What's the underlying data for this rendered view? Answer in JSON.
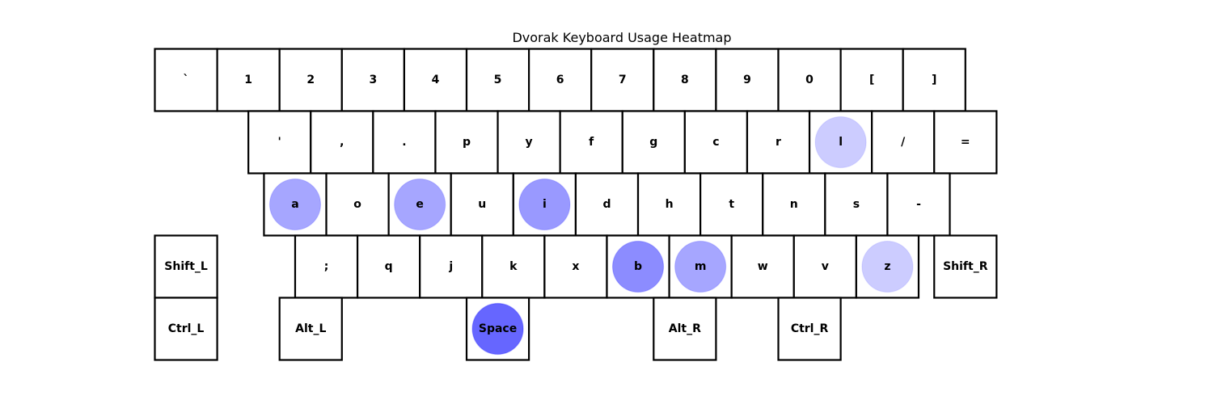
{
  "chart_data": {
    "type": "heatmap",
    "title": "Dvorak Keyboard Usage Heatmap",
    "heat_color": "#0000ff",
    "rows": [
      {
        "offset": 0,
        "keys": [
          "`",
          "1",
          "2",
          "3",
          "4",
          "5",
          "6",
          "7",
          "8",
          "9",
          "0",
          "[",
          "]"
        ]
      },
      {
        "offset": 1.5,
        "keys": [
          "'",
          ",",
          ".",
          "p",
          "y",
          "f",
          "g",
          "c",
          "r",
          "l",
          "/",
          "="
        ]
      },
      {
        "offset": 1.75,
        "keys": [
          "a",
          "o",
          "e",
          "u",
          "i",
          "d",
          "h",
          "t",
          "n",
          "s",
          "-"
        ]
      },
      {
        "offset": 2.25,
        "keys": [
          ";",
          "q",
          "j",
          "k",
          "x",
          "b",
          "m",
          "w",
          "v",
          "z"
        ]
      }
    ],
    "special_keys": [
      {
        "label": "Shift_L",
        "row": 3,
        "col": 0
      },
      {
        "label": "Shift_R",
        "row": 3,
        "col": 12.5
      },
      {
        "label": "Ctrl_L",
        "row": 4,
        "col": 0
      },
      {
        "label": "Alt_L",
        "row": 4,
        "col": 2
      },
      {
        "label": "Space",
        "row": 4,
        "col": 5
      },
      {
        "label": "Alt_R",
        "row": 4,
        "col": 8
      },
      {
        "label": "Ctrl_R",
        "row": 4,
        "col": 10
      }
    ],
    "usage": {
      "l": 0.2,
      "a": 0.35,
      "e": 0.35,
      "i": 0.4,
      "b": 0.45,
      "m": 0.35,
      "z": 0.2,
      "Space": 0.6
    }
  }
}
